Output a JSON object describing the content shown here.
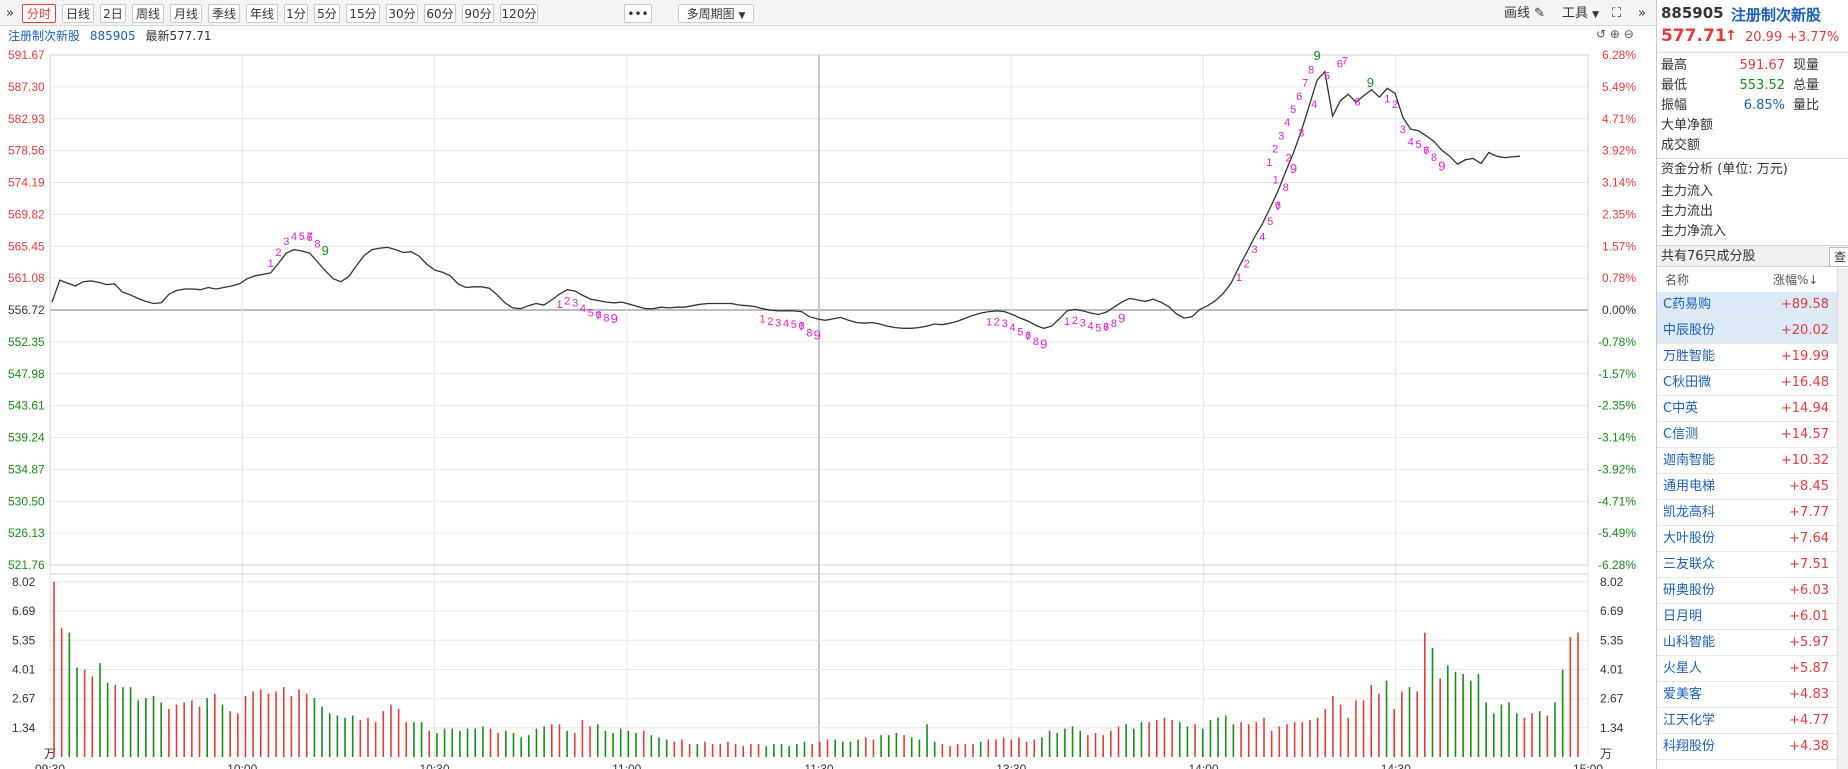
{
  "toolbar": {
    "collapse_left": "»",
    "periods": [
      "分时",
      "日线",
      "2日",
      "周线",
      "月线",
      "季线",
      "年线",
      "1分",
      "5分",
      "15分",
      "30分",
      "60分",
      "90分",
      "120分"
    ],
    "active_period": "分时",
    "more": "•••",
    "multi_period": "多周期图",
    "draw_line": "画线",
    "tools": "工具",
    "expand_right": "»"
  },
  "chart_head": {
    "name": "注册制次新股",
    "code": "885905",
    "latest_label": "最新577.71"
  },
  "colors": {
    "up": "#e03c3c",
    "down": "#1a8a1a",
    "line": "#333333",
    "magenta": "#e020d0",
    "grid": "#e6e6e6"
  },
  "chart_data": [
    {
      "type": "line",
      "y_left_ticks": [
        "591.67",
        "587.30",
        "582.93",
        "578.56",
        "574.19",
        "569.82",
        "565.45",
        "561.08",
        "556.72",
        "552.35",
        "547.98",
        "543.61",
        "539.24",
        "534.87",
        "530.50",
        "526.13",
        "521.76"
      ],
      "y_right_ticks": [
        "6.28%",
        "5.49%",
        "4.71%",
        "3.92%",
        "3.14%",
        "2.35%",
        "1.57%",
        "0.78%",
        "0.00%",
        "-0.78%",
        "-1.57%",
        "-2.35%",
        "-3.14%",
        "-3.92%",
        "-4.71%",
        "-5.49%",
        "-6.28%"
      ],
      "ylim": [
        521.76,
        591.67
      ],
      "prev_close": 556.72,
      "x_ticks": [
        "09:30",
        "10:00",
        "10:30",
        "11:00",
        "11:30",
        "13:30",
        "14:00",
        "14:30",
        "15:00"
      ],
      "series": [
        {
          "values": [
            557.8,
            560.8,
            560.4,
            560.0,
            560.6,
            560.7,
            560.5,
            560.2,
            560.3,
            559.2,
            558.8,
            558.3,
            557.9,
            557.6,
            557.7,
            558.9,
            559.4,
            559.6,
            559.6,
            559.5,
            559.8,
            559.6,
            559.8,
            560.0,
            560.3,
            561.0,
            561.4,
            561.6,
            561.8,
            563.1,
            564.5,
            565.0,
            564.8,
            564.5,
            563.3,
            562.1,
            561.0,
            560.6,
            561.3,
            562.8,
            564.2,
            565.0,
            565.2,
            565.3,
            565.0,
            564.6,
            564.7,
            564.1,
            563.0,
            562.2,
            561.9,
            561.4,
            560.3,
            559.8,
            559.9,
            559.9,
            559.7,
            558.8,
            557.7,
            557.0,
            556.9,
            557.3,
            557.6,
            557.4,
            558.1,
            558.9,
            559.5,
            559.3,
            558.7,
            558.2,
            558.0,
            557.8,
            557.7,
            557.8,
            557.5,
            557.2,
            556.9,
            556.9,
            557.1,
            557.0,
            557.1,
            557.1,
            557.3,
            557.5,
            557.6,
            557.6,
            557.6,
            557.6,
            557.4,
            557.3,
            557.2,
            556.9,
            556.7,
            556.6,
            556.6,
            556.6,
            556.5,
            555.8,
            555.5,
            555.3,
            555.5,
            555.7,
            555.3,
            555.0,
            554.9,
            555.0,
            554.8,
            554.5,
            554.3,
            554.2,
            554.2,
            554.3,
            554.5,
            554.8,
            554.7,
            554.9,
            555.2,
            555.6,
            556.0,
            556.3,
            556.5,
            556.6,
            556.5,
            556.1,
            555.6,
            555.2,
            554.6,
            554.2,
            554.5,
            555.5,
            556.6,
            556.8,
            556.6,
            556.3,
            556.1,
            556.4,
            557.1,
            557.8,
            558.3,
            558.1,
            557.9,
            558.2,
            557.8,
            557.2,
            556.2,
            555.6,
            555.8,
            556.8,
            557.3,
            558.0,
            559.0,
            560.4,
            562.6,
            564.6,
            566.7,
            568.5,
            570.7,
            573.0,
            575.7,
            578.3,
            581.3,
            584.7,
            588.2,
            589.4,
            583.3,
            585.4,
            586.3,
            585.2,
            586.1,
            586.9,
            585.9,
            587.1,
            586.4,
            583.1,
            581.5,
            581.3,
            580.6,
            579.8,
            578.6,
            577.8,
            576.7,
            577.3,
            577.5,
            576.8,
            578.3,
            577.8,
            577.6,
            577.7,
            577.8
          ]
        }
      ],
      "td_sequences": [
        {
          "digits": [
            "1",
            "2",
            "3",
            "4",
            "5",
            "6",
            "7",
            "8",
            "9"
          ],
          "completion": "green"
        },
        {
          "digits": [
            "1",
            "2",
            "3",
            "4",
            "5",
            "6",
            "7",
            "8",
            "9"
          ],
          "completion": "magenta"
        },
        {
          "digits": [
            "1",
            "2",
            "3",
            "4",
            "5",
            "6",
            "7",
            "8",
            "9"
          ],
          "completion": "magenta"
        },
        {
          "digits": [
            "1",
            "2",
            "3",
            "4",
            "5",
            "6",
            "7",
            "8",
            "9"
          ],
          "completion": "magenta"
        },
        {
          "digits": [
            "1",
            "2",
            "3",
            "4",
            "5",
            "6",
            "7",
            "8",
            "9"
          ],
          "completion": "magenta"
        },
        {
          "digits": [
            "1",
            "2",
            "3",
            "4",
            "5",
            "6",
            "7",
            "8",
            "9"
          ],
          "completion": "magenta"
        },
        {
          "digits": [
            "1",
            "2",
            "3",
            "4",
            "5",
            "6",
            "7",
            "8",
            "9"
          ],
          "completion": "green"
        },
        {
          "digits": [
            "1",
            "2",
            "3",
            "4",
            "5",
            "6",
            "7",
            "8",
            "9"
          ],
          "completion": "green"
        },
        {
          "digits": [
            "1",
            "2",
            "3",
            "4",
            "5",
            "6",
            "7",
            "8",
            "9"
          ],
          "completion": "magenta"
        }
      ]
    },
    {
      "type": "bar",
      "y_ticks": [
        "8.02",
        "6.69",
        "5.35",
        "4.01",
        "2.67",
        "1.34"
      ],
      "unit": "万",
      "ylim": [
        0,
        8.02
      ],
      "values": [
        8.02,
        5.9,
        5.7,
        4.1,
        4.0,
        3.7,
        4.3,
        3.4,
        3.3,
        3.2,
        3.2,
        2.6,
        2.7,
        2.8,
        2.5,
        2.2,
        2.4,
        2.5,
        2.6,
        2.3,
        2.7,
        2.9,
        2.4,
        2.1,
        2.0,
        2.8,
        3.0,
        3.1,
        2.9,
        3.0,
        3.2,
        2.8,
        3.1,
        2.9,
        2.7,
        2.3,
        2.0,
        1.9,
        1.8,
        1.9,
        1.7,
        1.8,
        1.6,
        2.1,
        2.4,
        2.2,
        1.6,
        1.6,
        1.6,
        1.2,
        1.1,
        1.3,
        1.3,
        1.2,
        1.3,
        1.3,
        1.4,
        1.3,
        1.1,
        1.2,
        1.1,
        0.9,
        1.0,
        1.3,
        1.4,
        1.5,
        1.5,
        1.2,
        1.1,
        1.7,
        1.4,
        1.5,
        1.2,
        1.1,
        1.3,
        1.2,
        1.1,
        1.2,
        1.0,
        0.9,
        0.8,
        0.7,
        0.8,
        0.6,
        0.6,
        0.7,
        0.6,
        0.6,
        0.7,
        0.6,
        0.5,
        0.6,
        0.6,
        0.5,
        0.6,
        0.6,
        0.5,
        0.6,
        0.7,
        0.6,
        0.7,
        0.8,
        0.8,
        0.7,
        0.7,
        0.8,
        0.9,
        0.8,
        1.0,
        1.0,
        1.1,
        1.0,
        0.9,
        0.8,
        1.5,
        0.7,
        0.6,
        0.5,
        0.6,
        0.6,
        0.6,
        0.7,
        0.8,
        0.8,
        0.9,
        0.8,
        0.9,
        0.7,
        0.8,
        0.9,
        1.2,
        1.1,
        1.3,
        1.4,
        1.2,
        1.0,
        1.1,
        1.0,
        1.2,
        1.4,
        1.5,
        1.3,
        1.6,
        1.6,
        1.7,
        1.8,
        1.7,
        1.6,
        1.4,
        1.5,
        1.3,
        1.7,
        1.8,
        1.9,
        1.5,
        1.6,
        1.5,
        1.6,
        1.8,
        1.2,
        1.4,
        1.5,
        1.6,
        1.6,
        1.7,
        1.8,
        2.2,
        2.8,
        2.4,
        1.8,
        2.6,
        2.6,
        3.3,
        2.9,
        3.5,
        2.2,
        3.0,
        3.2,
        3.0,
        5.7,
        5.0,
        3.6,
        4.2,
        3.9,
        3.8,
        3.5,
        3.8,
        2.5,
        2.0,
        2.4,
        2.5,
        2.0,
        1.8,
        2.0,
        2.1,
        1.9,
        2.5,
        4.0,
        5.5,
        5.7
      ]
    }
  ],
  "quote": {
    "code": "885905",
    "name": "注册制次新股",
    "price": "577.71",
    "arrow": "↑",
    "change": "20.99",
    "change_pct": "+3.77%",
    "stats": [
      {
        "label": "最高",
        "value": "591.67",
        "suffix": "现量"
      },
      {
        "label": "最低",
        "value": "553.52",
        "suffix": "总量"
      },
      {
        "label": "振幅",
        "value": "6.85%",
        "suffix": "量比"
      },
      {
        "label": "大单净额",
        "value": "",
        "suffix": ""
      },
      {
        "label": "成交额",
        "value": "",
        "suffix": ""
      }
    ],
    "fund_title": "资金分析 (单位: 万元)",
    "fund_rows": [
      "主力流入",
      "主力流出",
      "主力净流入"
    ]
  },
  "constituents": {
    "title": "共有76只成分股",
    "query_button": "查",
    "header_name": "名称",
    "header_change": "涨幅%↓",
    "rows": [
      {
        "name": "C药易购",
        "change": "+89.58"
      },
      {
        "name": "中辰股份",
        "change": "+20.02"
      },
      {
        "name": "万胜智能",
        "change": "+19.99"
      },
      {
        "name": "C秋田微",
        "change": "+16.48"
      },
      {
        "name": "C中英",
        "change": "+14.94"
      },
      {
        "name": "C信测",
        "change": "+14.57"
      },
      {
        "name": "迦南智能",
        "change": "+10.32"
      },
      {
        "name": "通用电梯",
        "change": "+8.45"
      },
      {
        "name": "凯龙高科",
        "change": "+7.77"
      },
      {
        "name": "大叶股份",
        "change": "+7.64"
      },
      {
        "name": "三友联众",
        "change": "+7.51"
      },
      {
        "name": "研奥股份",
        "change": "+6.03"
      },
      {
        "name": "日月明",
        "change": "+6.01"
      },
      {
        "name": "山科智能",
        "change": "+5.97"
      },
      {
        "name": "火星人",
        "change": "+5.87"
      },
      {
        "name": "爱美客",
        "change": "+4.83"
      },
      {
        "name": "江天化学",
        "change": "+4.77"
      },
      {
        "name": "科翔股份",
        "change": "+4.38"
      }
    ]
  }
}
